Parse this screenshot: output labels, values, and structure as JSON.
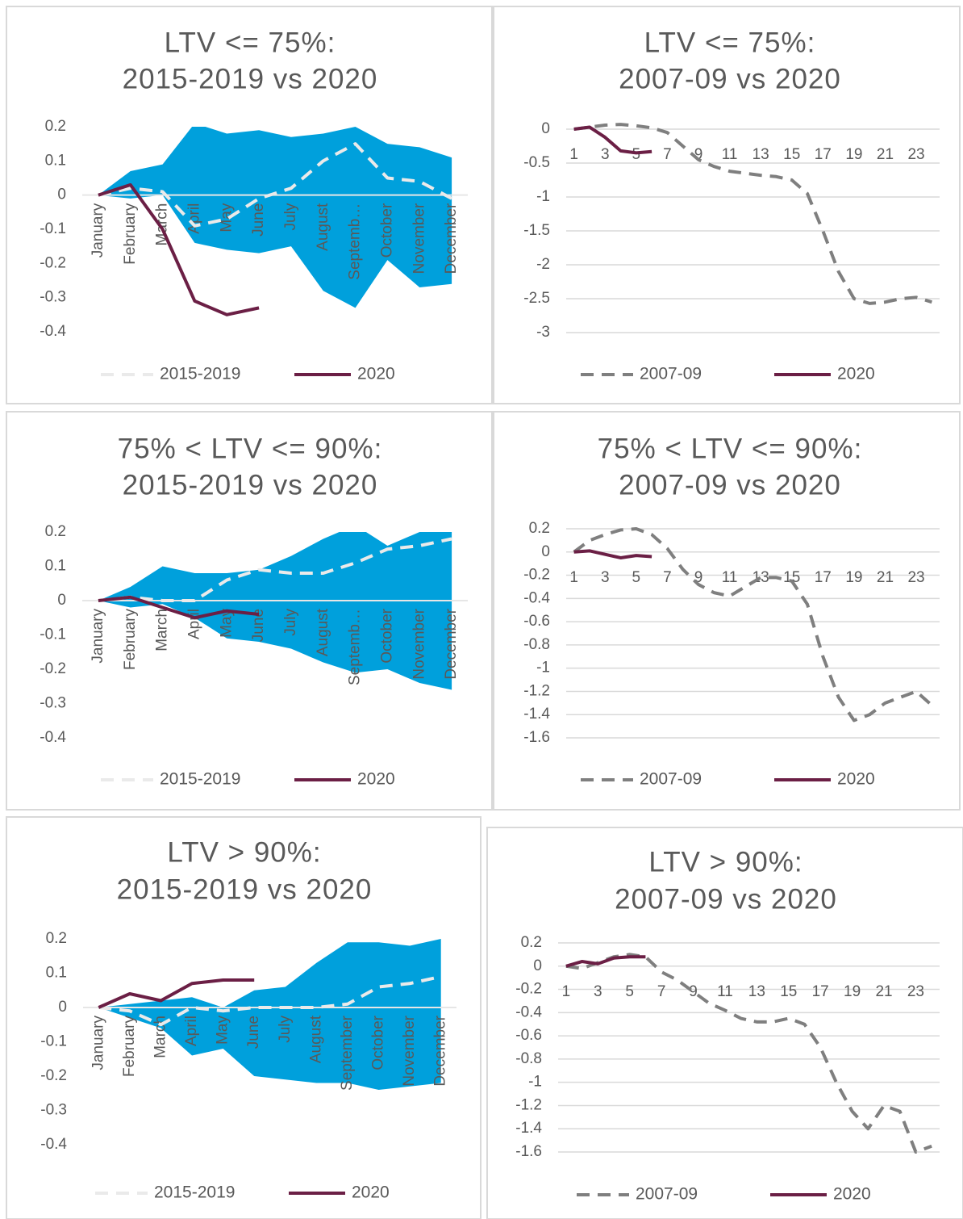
{
  "chart_data": [
    {
      "type": "line",
      "title": "LTV <= 75%:",
      "subtitle": "2015-2019 vs 2020",
      "categories": [
        "January",
        "February",
        "March",
        "April",
        "May",
        "June",
        "July",
        "August",
        "Septemb…",
        "October",
        "November",
        "December"
      ],
      "band": {
        "color": "#00a0dc",
        "upper": [
          0,
          0.07,
          0.09,
          0.21,
          0.18,
          0.19,
          0.17,
          0.18,
          0.2,
          0.15,
          0.14,
          0.11
        ],
        "lower": [
          0,
          -0.01,
          0,
          -0.14,
          -0.16,
          -0.17,
          -0.15,
          -0.28,
          -0.33,
          -0.19,
          -0.27,
          -0.26
        ]
      },
      "series": [
        {
          "name": "2015-2019",
          "color": "#eaeaea",
          "dashed": true,
          "values": [
            0,
            0.02,
            0.01,
            -0.09,
            -0.07,
            -0.01,
            0.02,
            0.1,
            0.15,
            0.05,
            0.04,
            -0.01
          ]
        },
        {
          "name": "2020",
          "color": "#6b1f45",
          "dashed": false,
          "values": [
            0,
            0.03,
            -0.1,
            -0.31,
            -0.35,
            -0.33,
            null,
            null,
            null,
            null,
            null,
            null
          ]
        }
      ],
      "ylim": [
        -0.4,
        0.2
      ],
      "yticks": [
        0.2,
        0.1,
        0,
        -0.1,
        -0.2,
        -0.3,
        -0.4
      ],
      "grid": false,
      "legend": "bottom"
    },
    {
      "type": "line",
      "title": "LTV <= 75%:",
      "subtitle": "2007-09 vs 2020",
      "x": [
        1,
        2,
        3,
        4,
        5,
        6,
        7,
        8,
        9,
        10,
        11,
        12,
        13,
        14,
        15,
        16,
        17,
        18,
        19,
        20,
        21,
        22,
        23,
        24
      ],
      "series": [
        {
          "name": "2007-09",
          "color": "#7f7f7f",
          "dashed": true,
          "values": [
            0,
            0.03,
            0.06,
            0.07,
            0.05,
            0.02,
            -0.05,
            -0.25,
            -0.45,
            -0.55,
            -0.62,
            -0.65,
            -0.68,
            -0.7,
            -0.75,
            -0.95,
            -1.5,
            -2.1,
            -2.5,
            -2.57,
            -2.55,
            -2.5,
            -2.48,
            -2.55
          ]
        },
        {
          "name": "2020",
          "color": "#6b1f45",
          "dashed": false,
          "values": [
            0,
            0.03,
            -0.12,
            -0.32,
            -0.35,
            -0.33,
            null,
            null,
            null,
            null,
            null,
            null,
            null,
            null,
            null,
            null,
            null,
            null,
            null,
            null,
            null,
            null,
            null,
            null
          ]
        }
      ],
      "xlim": [
        0.5,
        24.5
      ],
      "xticks": [
        1,
        3,
        5,
        7,
        9,
        11,
        13,
        15,
        17,
        19,
        21,
        23
      ],
      "ylim": [
        -3,
        0
      ],
      "yticks": [
        0,
        -0.5,
        -1,
        -1.5,
        -2,
        -2.5,
        -3
      ],
      "grid": true,
      "legend": "bottom"
    },
    {
      "type": "line",
      "title": "75% < LTV <= 90%:",
      "subtitle": "2015-2019 vs 2020",
      "categories": [
        "January",
        "February",
        "March",
        "April",
        "May",
        "June",
        "July",
        "August",
        "Septemb…",
        "October",
        "November",
        "December"
      ],
      "band": {
        "color": "#00a0dc",
        "upper": [
          0,
          0.04,
          0.1,
          0.08,
          0.08,
          0.09,
          0.13,
          0.18,
          0.22,
          0.16,
          0.2,
          0.21
        ],
        "lower": [
          0,
          -0.02,
          -0.01,
          -0.05,
          -0.11,
          -0.12,
          -0.14,
          -0.18,
          -0.21,
          -0.2,
          -0.24,
          -0.26
        ]
      },
      "series": [
        {
          "name": "2015-2019",
          "color": "#eaeaea",
          "dashed": true,
          "values": [
            0,
            0.01,
            0,
            0,
            0.06,
            0.09,
            0.08,
            0.08,
            0.11,
            0.15,
            0.16,
            0.18
          ]
        },
        {
          "name": "2020",
          "color": "#6b1f45",
          "dashed": false,
          "values": [
            0,
            0.01,
            -0.02,
            -0.05,
            -0.03,
            -0.04,
            null,
            null,
            null,
            null,
            null,
            null
          ]
        }
      ],
      "ylim": [
        -0.4,
        0.2
      ],
      "yticks": [
        0.2,
        0.1,
        0,
        -0.1,
        -0.2,
        -0.3,
        -0.4
      ],
      "grid": false,
      "legend": "bottom"
    },
    {
      "type": "line",
      "title": "75% < LTV <= 90%:",
      "subtitle": "2007-09 vs 2020",
      "x": [
        1,
        2,
        3,
        4,
        5,
        6,
        7,
        8,
        9,
        10,
        11,
        12,
        13,
        14,
        15,
        16,
        17,
        18,
        19,
        20,
        21,
        22,
        23,
        24
      ],
      "series": [
        {
          "name": "2007-09",
          "color": "#7f7f7f",
          "dashed": true,
          "values": [
            0,
            0.1,
            0.15,
            0.19,
            0.2,
            0.15,
            0.03,
            -0.15,
            -0.28,
            -0.35,
            -0.38,
            -0.3,
            -0.22,
            -0.22,
            -0.25,
            -0.45,
            -0.9,
            -1.25,
            -1.45,
            -1.4,
            -1.3,
            -1.25,
            -1.2,
            -1.32
          ]
        },
        {
          "name": "2020",
          "color": "#6b1f45",
          "dashed": false,
          "values": [
            0,
            0.01,
            -0.02,
            -0.05,
            -0.03,
            -0.04,
            null,
            null,
            null,
            null,
            null,
            null,
            null,
            null,
            null,
            null,
            null,
            null,
            null,
            null,
            null,
            null,
            null,
            null
          ]
        }
      ],
      "xlim": [
        0.5,
        24.5
      ],
      "xticks": [
        1,
        3,
        5,
        7,
        9,
        11,
        13,
        15,
        17,
        19,
        21,
        23
      ],
      "ylim": [
        -1.6,
        0.2
      ],
      "yticks": [
        0.2,
        0,
        -0.2,
        -0.4,
        -0.6,
        -0.8,
        -1,
        -1.2,
        -1.4,
        -1.6
      ],
      "grid": true,
      "legend": "bottom"
    },
    {
      "type": "line",
      "title": "LTV > 90%:",
      "subtitle": "2015-2019 vs 2020",
      "categories": [
        "January",
        "February",
        "March",
        "April",
        "May",
        "June",
        "July",
        "August",
        "September",
        "October",
        "November",
        "December"
      ],
      "band": {
        "color": "#00a0dc",
        "upper": [
          0,
          0.01,
          0.02,
          0.03,
          0,
          0.05,
          0.06,
          0.13,
          0.19,
          0.19,
          0.18,
          0.2
        ],
        "lower": [
          0,
          -0.03,
          -0.06,
          -0.14,
          -0.12,
          -0.2,
          -0.21,
          -0.22,
          -0.22,
          -0.24,
          -0.23,
          -0.22
        ]
      },
      "series": [
        {
          "name": "2015-2019",
          "color": "#eaeaea",
          "dashed": true,
          "values": [
            0,
            -0.01,
            -0.05,
            0,
            -0.01,
            0,
            0,
            0,
            0.01,
            0.06,
            0.07,
            0.09
          ]
        },
        {
          "name": "2020",
          "color": "#6b1f45",
          "dashed": false,
          "values": [
            0,
            0.04,
            0.02,
            0.07,
            0.08,
            0.08,
            null,
            null,
            null,
            null,
            null,
            null
          ]
        }
      ],
      "ylim": [
        -0.4,
        0.2
      ],
      "yticks": [
        0.2,
        0.1,
        0,
        -0.1,
        -0.2,
        -0.3,
        -0.4
      ],
      "grid": false,
      "legend": "bottom"
    },
    {
      "type": "line",
      "title": "LTV > 90%:",
      "subtitle": "2007-09 vs 2020",
      "x": [
        1,
        2,
        3,
        4,
        5,
        6,
        7,
        8,
        9,
        10,
        11,
        12,
        13,
        14,
        15,
        16,
        17,
        18,
        19,
        20,
        21,
        22,
        23,
        24
      ],
      "series": [
        {
          "name": "2007-09",
          "color": "#7f7f7f",
          "dashed": true,
          "values": [
            0,
            -0.02,
            0.03,
            0.08,
            0.1,
            0.08,
            -0.05,
            -0.12,
            -0.22,
            -0.32,
            -0.38,
            -0.45,
            -0.48,
            -0.48,
            -0.45,
            -0.5,
            -0.7,
            -1,
            -1.25,
            -1.4,
            -1.2,
            -1.25,
            -1.6,
            -1.55
          ]
        },
        {
          "name": "2020",
          "color": "#6b1f45",
          "dashed": false,
          "values": [
            0,
            0.04,
            0.02,
            0.07,
            0.08,
            0.08,
            null,
            null,
            null,
            null,
            null,
            null,
            null,
            null,
            null,
            null,
            null,
            null,
            null,
            null,
            null,
            null,
            null,
            null
          ]
        }
      ],
      "xlim": [
        0.5,
        24.5
      ],
      "xticks": [
        1,
        3,
        5,
        7,
        9,
        11,
        13,
        15,
        17,
        19,
        21,
        23
      ],
      "ylim": [
        -1.6,
        0.2
      ],
      "yticks": [
        0.2,
        0,
        -0.2,
        -0.4,
        -0.6,
        -0.8,
        -1,
        -1.2,
        -1.4,
        -1.6
      ],
      "grid": true,
      "legend": "bottom"
    }
  ]
}
